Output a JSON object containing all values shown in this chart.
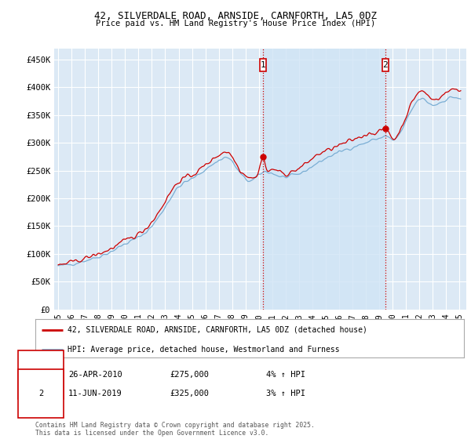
{
  "title": "42, SILVERDALE ROAD, ARNSIDE, CARNFORTH, LA5 0DZ",
  "subtitle": "Price paid vs. HM Land Registry's House Price Index (HPI)",
  "ylim": [
    0,
    470000
  ],
  "yticks": [
    0,
    50000,
    100000,
    150000,
    200000,
    250000,
    300000,
    350000,
    400000,
    450000
  ],
  "ytick_labels": [
    "£0",
    "£50K",
    "£100K",
    "£150K",
    "£200K",
    "£250K",
    "£300K",
    "£350K",
    "£400K",
    "£450K"
  ],
  "plot_bg_color": "#dce9f5",
  "grid_color": "#ffffff",
  "red_color": "#cc0000",
  "blue_color": "#7aaed4",
  "shade_color": "#d0e4f5",
  "transaction1": {
    "date": "26-APR-2010",
    "price": 275000,
    "price_str": "£275,000",
    "change": "4%",
    "direction": "↑",
    "label": "1"
  },
  "transaction2": {
    "date": "11-JUN-2019",
    "price": 325000,
    "price_str": "£325,000",
    "change": "3%",
    "direction": "↑",
    "label": "2"
  },
  "legend_line1": "42, SILVERDALE ROAD, ARNSIDE, CARNFORTH, LA5 0DZ (detached house)",
  "legend_line2": "HPI: Average price, detached house, Westmorland and Furness",
  "footnote": "Contains HM Land Registry data © Crown copyright and database right 2025.\nThis data is licensed under the Open Government Licence v3.0.",
  "marker1_x": 2010.32,
  "marker1_y": 275000,
  "marker2_x": 2019.44,
  "marker2_y": 325000,
  "xtick_years": [
    1995,
    1996,
    1997,
    1998,
    1999,
    2000,
    2001,
    2002,
    2003,
    2004,
    2005,
    2006,
    2007,
    2008,
    2009,
    2010,
    2011,
    2012,
    2013,
    2014,
    2015,
    2016,
    2017,
    2018,
    2019,
    2020,
    2021,
    2022,
    2023,
    2024,
    2025
  ]
}
